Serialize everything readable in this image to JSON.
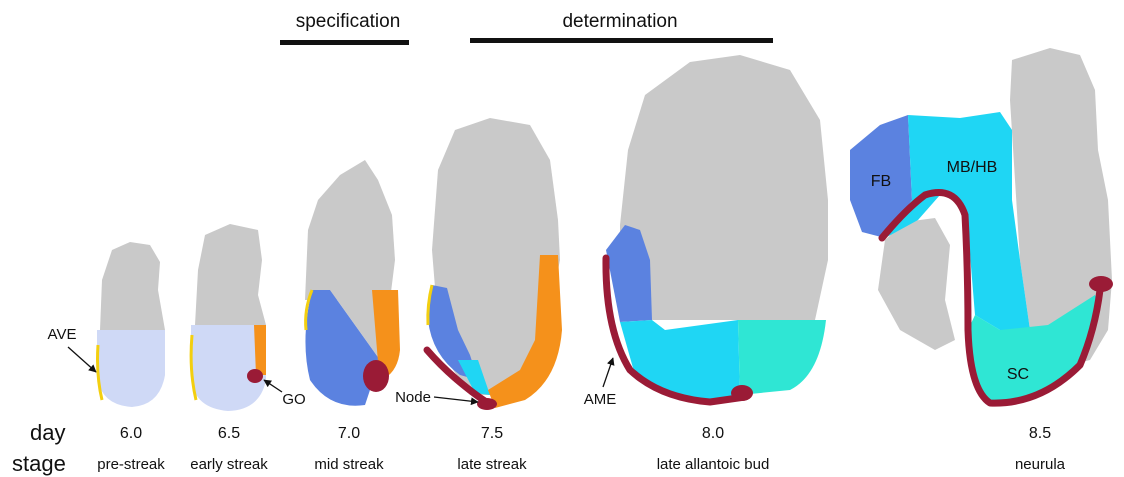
{
  "phases": [
    "specification",
    "determination"
  ],
  "annotations": {
    "ave": "AVE",
    "go": "GO",
    "node": "Node",
    "ame": "AME",
    "fb": "FB",
    "mbhb": "MB/HB",
    "sc": "SC"
  },
  "row_labels": {
    "day": "day",
    "stage": "stage"
  },
  "stages": [
    {
      "day": "6.0",
      "stage": "pre-streak"
    },
    {
      "day": "6.5",
      "stage": "early streak"
    },
    {
      "day": "7.0",
      "stage": "mid streak"
    },
    {
      "day": "7.5",
      "stage": "late streak"
    },
    {
      "day": "8.0",
      "stage": "late allantoic bud"
    },
    {
      "day": "8.5",
      "stage": "neurula"
    }
  ]
}
